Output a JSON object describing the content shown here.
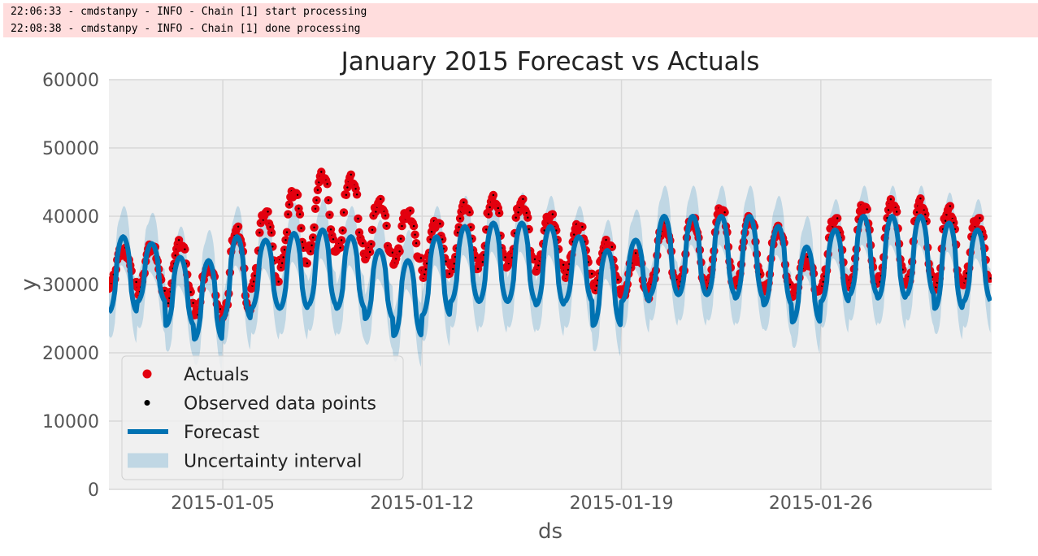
{
  "log": {
    "lines": [
      "22:06:33 - cmdstanpy - INFO - Chain [1] start processing",
      "22:08:38 - cmdstanpy - INFO - Chain [1] done processing"
    ]
  },
  "colors": {
    "log_background": "#ffdddd",
    "axes_background": "#f0f0f0",
    "actuals": "#e3000f",
    "observed": "#000000",
    "forecast": "#0072b2",
    "uncertainty": "#0072b2",
    "grid": "#d8d8d8"
  },
  "chart_data": {
    "type": "line",
    "title": "January 2015 Forecast vs Actuals",
    "xlabel": "ds",
    "ylabel": "y",
    "xlim": [
      "2015-01-01T00:00",
      "2015-02-01T00:00"
    ],
    "ylim": [
      0,
      60000
    ],
    "y_ticks": [
      "0",
      "10000",
      "20000",
      "30000",
      "40000",
      "50000",
      "60000"
    ],
    "x_ticks": [
      "2015-01-05",
      "2015-01-12",
      "2015-01-19",
      "2015-01-26"
    ],
    "grid": true,
    "legend": {
      "position": "lower-left",
      "entries": [
        "Actuals",
        "Observed data points",
        "Forecast",
        "Uncertainty interval"
      ]
    },
    "daily_forecast": {
      "dates": [
        "2015-01-01",
        "2015-01-02",
        "2015-01-03",
        "2015-01-04",
        "2015-01-05",
        "2015-01-06",
        "2015-01-07",
        "2015-01-08",
        "2015-01-09",
        "2015-01-10",
        "2015-01-11",
        "2015-01-12",
        "2015-01-13",
        "2015-01-14",
        "2015-01-15",
        "2015-01-16",
        "2015-01-17",
        "2015-01-18",
        "2015-01-19",
        "2015-01-20",
        "2015-01-21",
        "2015-01-22",
        "2015-01-23",
        "2015-01-24",
        "2015-01-25",
        "2015-01-26",
        "2015-01-27",
        "2015-01-28",
        "2015-01-29",
        "2015-01-30",
        "2015-01-31"
      ],
      "peak": [
        37000,
        36000,
        34000,
        33500,
        37000,
        36500,
        37500,
        38000,
        37000,
        35000,
        33500,
        37000,
        38500,
        39000,
        39000,
        38500,
        37000,
        35000,
        36500,
        40000,
        40000,
        40000,
        40000,
        38500,
        35500,
        38000,
        40000,
        40000,
        40000,
        39000,
        38000
      ],
      "trough": [
        26000,
        27500,
        24000,
        22000,
        25000,
        26500,
        26500,
        27000,
        26500,
        25000,
        22500,
        25500,
        27500,
        27500,
        27500,
        27000,
        27500,
        24000,
        27500,
        28500,
        28500,
        28500,
        28000,
        27000,
        24500,
        27500,
        28500,
        28000,
        28500,
        26500,
        27500
      ]
    },
    "actuals_daily": {
      "peak": [
        35000,
        35500,
        36000,
        32500,
        38000,
        40500,
        43500,
        46000,
        45500,
        42000,
        40500,
        39000,
        41500,
        42500,
        42000,
        40000,
        38500,
        36000,
        34000,
        38500,
        39500,
        41000,
        39500,
        38000,
        33500,
        39500,
        41500,
        42000,
        42000,
        41000,
        39500
      ],
      "trough": [
        30000,
        29000,
        27500,
        25500,
        25500,
        30000,
        33000,
        35000,
        35000,
        34000,
        33500,
        31500,
        32500,
        33000,
        33000,
        32500,
        31500,
        29500,
        28500,
        30000,
        30000,
        30000,
        30000,
        29000,
        28500,
        30000,
        30000,
        30500,
        30000,
        29500,
        30500
      ]
    }
  }
}
